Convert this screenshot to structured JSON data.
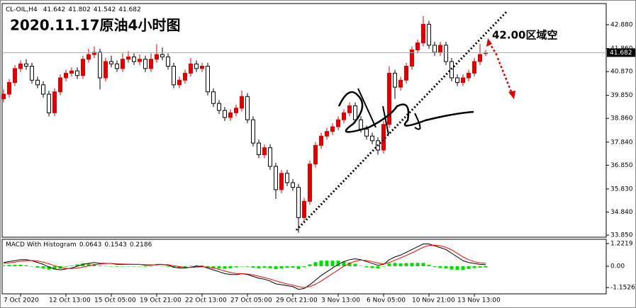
{
  "chart_data": {
    "type": "candlestick",
    "title": "2020.11.17原油4小时图",
    "symbol": "CL-OIL,H4",
    "annotation": "42.00区域空",
    "up_color": "#e00000",
    "down_color": "#000000",
    "current_price_line": true,
    "ylim": [
      33.76,
      43.79
    ],
    "yticks": [
      {
        "value": 42.88,
        "label": "42.880"
      },
      {
        "value": 41.86,
        "label": "41.860"
      },
      {
        "value": 40.87,
        "label": "40.870"
      },
      {
        "value": 39.85,
        "label": "39.850"
      },
      {
        "value": 38.86,
        "label": "38.860"
      },
      {
        "value": 37.84,
        "label": "37.840"
      },
      {
        "value": 36.85,
        "label": "36.850"
      },
      {
        "value": 35.83,
        "label": "35.830"
      },
      {
        "value": 34.84,
        "label": "34.840"
      },
      {
        "value": 33.85,
        "label": "33.850"
      }
    ],
    "categories": [
      null,
      null,
      null,
      "7 Oct 2020",
      null,
      null,
      null,
      null,
      null,
      null,
      null,
      "12 Oct 13:00",
      null,
      null,
      null,
      null,
      null,
      null,
      null,
      "15 Oct 05:00",
      null,
      null,
      null,
      null,
      null,
      null,
      null,
      "19 Oct 21:00",
      null,
      null,
      null,
      null,
      null,
      null,
      null,
      "22 Oct 13:00",
      null,
      null,
      null,
      null,
      null,
      null,
      null,
      "27 Oct 05:00",
      null,
      null,
      null,
      null,
      null,
      null,
      null,
      "29 Oct 21:00",
      null,
      null,
      null,
      null,
      null,
      null,
      null,
      "3 Nov 13:00",
      null,
      null,
      null,
      null,
      null,
      null,
      null,
      "6 Nov 05:00",
      null,
      null,
      null,
      null,
      null,
      null,
      null,
      "10 Nov 21:00",
      null,
      null,
      null,
      null,
      null,
      null,
      null,
      "13 Nov 13:00",
      null,
      null
    ],
    "candles": [
      [
        39.7,
        40.1,
        39.55,
        39.9
      ],
      [
        39.9,
        40.55,
        39.75,
        40.4
      ],
      [
        40.4,
        41.15,
        40.25,
        41.0
      ],
      [
        41.0,
        41.35,
        40.85,
        41.2
      ],
      [
        41.2,
        41.4,
        40.95,
        41.1
      ],
      [
        41.1,
        41.25,
        40.35,
        40.5
      ],
      [
        40.5,
        40.65,
        40.15,
        40.3
      ],
      [
        40.3,
        40.45,
        39.75,
        39.9
      ],
      [
        39.9,
        40.05,
        38.95,
        39.1
      ],
      [
        39.1,
        40.15,
        38.95,
        40.0
      ],
      [
        40.0,
        40.75,
        39.85,
        40.6
      ],
      [
        40.6,
        40.95,
        40.45,
        40.8
      ],
      [
        40.8,
        41.05,
        40.65,
        40.9
      ],
      [
        40.9,
        41.05,
        40.55,
        40.7
      ],
      [
        40.7,
        41.55,
        40.55,
        41.4
      ],
      [
        41.4,
        41.85,
        41.25,
        41.6
      ],
      [
        41.6,
        41.95,
        41.45,
        41.7
      ],
      [
        41.7,
        41.85,
        40.1,
        40.6
      ],
      [
        40.6,
        41.45,
        40.45,
        41.3
      ],
      [
        41.3,
        41.55,
        41.05,
        41.2
      ],
      [
        41.2,
        41.35,
        40.85,
        41.0
      ],
      [
        41.0,
        41.65,
        40.85,
        41.4
      ],
      [
        41.4,
        41.75,
        41.25,
        41.5
      ],
      [
        41.5,
        41.65,
        41.15,
        41.3
      ],
      [
        41.3,
        41.6,
        41.15,
        41.4
      ],
      [
        41.4,
        41.55,
        40.85,
        41.0
      ],
      [
        41.0,
        41.65,
        40.85,
        41.4
      ],
      [
        41.4,
        42.05,
        41.25,
        41.6
      ],
      [
        41.6,
        41.9,
        41.35,
        41.5
      ],
      [
        41.5,
        41.65,
        40.95,
        41.1
      ],
      [
        41.1,
        41.25,
        40.15,
        40.3
      ],
      [
        40.3,
        40.65,
        40.15,
        40.5
      ],
      [
        40.5,
        40.95,
        40.35,
        40.8
      ],
      [
        40.8,
        41.45,
        40.65,
        41.2
      ],
      [
        41.2,
        41.35,
        40.85,
        41.0
      ],
      [
        41.0,
        41.25,
        40.85,
        41.1
      ],
      [
        41.1,
        41.25,
        39.85,
        40.0
      ],
      [
        40.0,
        40.15,
        39.35,
        39.5
      ],
      [
        39.5,
        39.65,
        39.05,
        39.2
      ],
      [
        39.2,
        39.35,
        38.75,
        38.9
      ],
      [
        38.9,
        39.25,
        38.75,
        39.1
      ],
      [
        39.1,
        39.45,
        38.95,
        39.3
      ],
      [
        39.3,
        40.05,
        39.15,
        39.8
      ],
      [
        39.8,
        39.95,
        38.65,
        38.8
      ],
      [
        38.8,
        38.95,
        37.65,
        37.8
      ],
      [
        37.8,
        37.95,
        37.15,
        37.3
      ],
      [
        37.3,
        37.75,
        37.15,
        37.6
      ],
      [
        37.6,
        37.75,
        36.65,
        36.8
      ],
      [
        36.8,
        36.95,
        35.4,
        35.8
      ],
      [
        35.8,
        36.65,
        35.65,
        36.5
      ],
      [
        36.5,
        36.65,
        35.95,
        36.1
      ],
      [
        36.1,
        36.25,
        35.75,
        35.9
      ],
      [
        35.9,
        36.05,
        33.95,
        34.6
      ],
      [
        34.6,
        35.45,
        34.45,
        35.3
      ],
      [
        35.3,
        37.05,
        35.15,
        36.9
      ],
      [
        36.9,
        37.85,
        36.75,
        37.7
      ],
      [
        37.7,
        38.25,
        37.55,
        38.1
      ],
      [
        38.1,
        38.45,
        37.95,
        38.3
      ],
      [
        38.3,
        38.65,
        38.15,
        38.5
      ],
      [
        38.5,
        38.95,
        38.35,
        38.8
      ],
      [
        38.8,
        39.25,
        38.65,
        39.1
      ],
      [
        39.1,
        39.55,
        38.95,
        39.4
      ],
      [
        39.4,
        39.55,
        38.65,
        38.8
      ],
      [
        38.8,
        38.95,
        38.25,
        38.4
      ],
      [
        38.4,
        38.55,
        37.95,
        38.1
      ],
      [
        38.1,
        38.25,
        37.75,
        37.9
      ],
      [
        37.9,
        38.05,
        37.3,
        37.5
      ],
      [
        37.5,
        38.75,
        37.35,
        38.6
      ],
      [
        38.6,
        41.1,
        38.45,
        40.8
      ],
      [
        40.8,
        40.95,
        39.7,
        40.2
      ],
      [
        40.2,
        40.65,
        40.05,
        40.5
      ],
      [
        40.5,
        41.25,
        40.35,
        41.1
      ],
      [
        41.1,
        41.95,
        40.95,
        41.8
      ],
      [
        41.8,
        42.25,
        41.65,
        42.1
      ],
      [
        42.1,
        43.25,
        41.95,
        42.9
      ],
      [
        42.9,
        43.05,
        41.85,
        42.0
      ],
      [
        42.0,
        42.15,
        41.55,
        41.7
      ],
      [
        41.7,
        42.15,
        41.55,
        42.0
      ],
      [
        42.0,
        42.15,
        41.15,
        41.3
      ],
      [
        41.3,
        41.45,
        40.45,
        40.6
      ],
      [
        40.6,
        40.75,
        40.25,
        40.4
      ],
      [
        40.4,
        40.75,
        40.25,
        40.6
      ],
      [
        40.6,
        40.95,
        40.45,
        40.8
      ],
      [
        40.8,
        41.45,
        40.65,
        41.3
      ],
      [
        41.3,
        42.05,
        41.15,
        41.6
      ],
      [
        41.642,
        41.802,
        41.542,
        41.682
      ]
    ],
    "indicator": {
      "name": "MACD With Histogram",
      "values": [
        0.0643,
        0.1543,
        0.2186
      ],
      "ylim": [
        -1.49,
        1.45
      ],
      "yticks": [
        1.2219,
        {
          "value": 0,
          "label": "0.00"
        },
        -1.1526
      ],
      "histogram": {
        "color": "#00e000",
        "values": [
          0.05,
          0.07,
          0.08,
          0.08,
          0.05,
          -0.01,
          -0.08,
          -0.12,
          -0.18,
          -0.18,
          -0.14,
          -0.03,
          0.03,
          0.1,
          0.15,
          0.13,
          0.12,
          0.03,
          0.01,
          0,
          -0.03,
          -0.02,
          -0.01,
          0,
          0,
          -0.03,
          -0.02,
          0.02,
          0.01,
          -0.03,
          -0.08,
          -0.08,
          -0.04,
          0.02,
          0.05,
          0.03,
          -0.05,
          -0.1,
          -0.13,
          -0.14,
          -0.11,
          -0.06,
          0,
          -0.03,
          -0.08,
          -0.11,
          -0.09,
          -0.11,
          -0.16,
          -0.12,
          -0.09,
          -0.08,
          -0.15,
          -0.05,
          0.1,
          0.22,
          0.3,
          0.3,
          0.3,
          0.3,
          0.25,
          0.2,
          0.13,
          0.02,
          -0.06,
          -0.1,
          -0.12,
          -0.02,
          0.15,
          0.18,
          0.15,
          0.17,
          0.18,
          0.18,
          0.18,
          0.08,
          -0.04,
          -0.1,
          -0.12,
          -0.18,
          -0.2,
          -0.2,
          -0.15,
          -0.1,
          -0.08,
          -0.07
        ]
      },
      "series": [
        {
          "color": "#000000",
          "values": [
            0.2,
            0.25,
            0.3,
            0.35,
            0.35,
            0.3,
            0.2,
            0.1,
            -0.05,
            -0.15,
            -0.2,
            -0.15,
            -0.1,
            0,
            0.1,
            0.15,
            0.2,
            0.15,
            0.15,
            0.15,
            0.1,
            0.1,
            0.1,
            0.1,
            0.1,
            0.05,
            0.05,
            0.1,
            0.1,
            0.05,
            -0.05,
            -0.1,
            -0.1,
            -0.05,
            0,
            0,
            -0.1,
            -0.2,
            -0.3,
            -0.4,
            -0.45,
            -0.45,
            -0.4,
            -0.45,
            -0.55,
            -0.65,
            -0.7,
            -0.8,
            -0.95,
            -1.0,
            -1.05,
            -1.1,
            -1.25,
            -1.2,
            -1.0,
            -0.75,
            -0.5,
            -0.3,
            -0.1,
            0.1,
            0.25,
            0.35,
            0.4,
            0.35,
            0.25,
            0.15,
            0.05,
            0.1,
            0.35,
            0.5,
            0.6,
            0.75,
            0.9,
            1.05,
            1.2,
            1.2,
            1.1,
            1.0,
            0.9,
            0.7,
            0.5,
            0.3,
            0.2,
            0.15,
            0.1,
            0.08
          ]
        },
        {
          "color": "#ff0000",
          "values": [
            0.15,
            0.18,
            0.22,
            0.27,
            0.3,
            0.31,
            0.28,
            0.22,
            0.13,
            0.03,
            -0.06,
            -0.12,
            -0.13,
            -0.1,
            -0.05,
            0.02,
            0.08,
            0.12,
            0.14,
            0.15,
            0.13,
            0.12,
            0.11,
            0.1,
            0.1,
            0.08,
            0.07,
            0.08,
            0.09,
            0.08,
            0.03,
            -0.02,
            -0.06,
            -0.07,
            -0.05,
            -0.03,
            -0.05,
            -0.1,
            -0.17,
            -0.26,
            -0.34,
            -0.39,
            -0.4,
            -0.42,
            -0.47,
            -0.54,
            -0.61,
            -0.69,
            -0.79,
            -0.88,
            -0.96,
            -1.02,
            -1.1,
            -1.15,
            -1.1,
            -0.97,
            -0.8,
            -0.6,
            -0.4,
            -0.2,
            0.0,
            0.15,
            0.27,
            0.33,
            0.31,
            0.25,
            0.17,
            0.12,
            0.2,
            0.32,
            0.45,
            0.58,
            0.72,
            0.87,
            1.02,
            1.12,
            1.14,
            1.1,
            1.02,
            0.88,
            0.7,
            0.5,
            0.35,
            0.25,
            0.18,
            0.15
          ]
        }
      ]
    }
  }
}
